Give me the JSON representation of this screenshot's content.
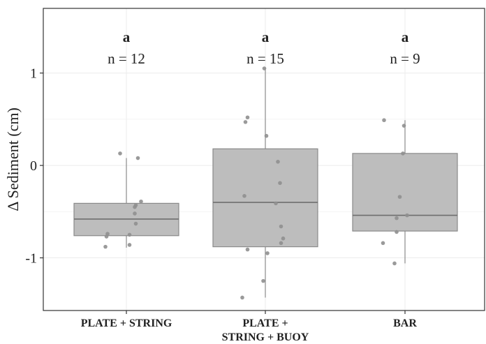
{
  "chart_data": {
    "type": "box",
    "ylabel": "Δ Sediment (cm)",
    "xlabel": "",
    "ylim": [
      -1.57,
      1.7
    ],
    "yticks": [
      1,
      0,
      -1
    ],
    "ytick_labels": [
      "1",
      "0",
      "-1"
    ],
    "grid": true,
    "colors": {
      "box_fill": "#bdbdbd",
      "box_stroke": "#8a8a8a",
      "point": "#8f8f8f",
      "grid": "#ebebeb",
      "frame": "#333333"
    },
    "groups": [
      {
        "label_lines": [
          "PLATE + STRING"
        ],
        "letter": "a",
        "n_label": "n = 12",
        "box": {
          "q1": -0.76,
          "median": -0.58,
          "q3": -0.41,
          "whisker_low": -0.89,
          "whisker_high": 0.08
        },
        "points": [
          {
            "x": -0.06,
            "y": 0.13
          },
          {
            "x": 0.11,
            "y": 0.08
          },
          {
            "x": 0.14,
            "y": -0.39
          },
          {
            "x": 0.09,
            "y": -0.43
          },
          {
            "x": 0.08,
            "y": -0.45
          },
          {
            "x": 0.08,
            "y": -0.52
          },
          {
            "x": 0.09,
            "y": -0.63
          },
          {
            "x": 0.03,
            "y": -0.75
          },
          {
            "x": -0.18,
            "y": -0.74
          },
          {
            "x": -0.19,
            "y": -0.77
          },
          {
            "x": -0.2,
            "y": -0.88
          },
          {
            "x": 0.03,
            "y": -0.86
          }
        ]
      },
      {
        "label_lines": [
          "PLATE +",
          "STRING + BUOY"
        ],
        "letter": "a",
        "n_label": "n = 15",
        "box": {
          "q1": -0.88,
          "median": -0.4,
          "q3": 0.18,
          "whisker_low": -1.43,
          "whisker_high": 1.05
        },
        "points": [
          {
            "x": -0.01,
            "y": 1.05
          },
          {
            "x": -0.17,
            "y": 0.52
          },
          {
            "x": -0.19,
            "y": 0.47
          },
          {
            "x": 0.01,
            "y": 0.32
          },
          {
            "x": 0.12,
            "y": 0.04
          },
          {
            "x": 0.14,
            "y": -0.19
          },
          {
            "x": -0.2,
            "y": -0.33
          },
          {
            "x": 0.1,
            "y": -0.41
          },
          {
            "x": 0.15,
            "y": -0.66
          },
          {
            "x": 0.17,
            "y": -0.79
          },
          {
            "x": 0.15,
            "y": -0.84
          },
          {
            "x": -0.17,
            "y": -0.91
          },
          {
            "x": 0.02,
            "y": -0.95
          },
          {
            "x": -0.02,
            "y": -1.25
          },
          {
            "x": -0.22,
            "y": -1.43
          }
        ]
      },
      {
        "label_lines": [
          "BAR"
        ],
        "letter": "a",
        "n_label": "n = 9",
        "box": {
          "q1": -0.71,
          "median": -0.54,
          "q3": 0.13,
          "whisker_low": -1.06,
          "whisker_high": 0.49
        },
        "points": [
          {
            "x": -0.2,
            "y": 0.49
          },
          {
            "x": -0.01,
            "y": 0.43
          },
          {
            "x": -0.02,
            "y": 0.13
          },
          {
            "x": -0.05,
            "y": -0.34
          },
          {
            "x": 0.02,
            "y": -0.54
          },
          {
            "x": -0.08,
            "y": -0.57
          },
          {
            "x": -0.08,
            "y": -0.72
          },
          {
            "x": -0.21,
            "y": -0.84
          },
          {
            "x": -0.1,
            "y": -1.06
          }
        ]
      }
    ]
  }
}
